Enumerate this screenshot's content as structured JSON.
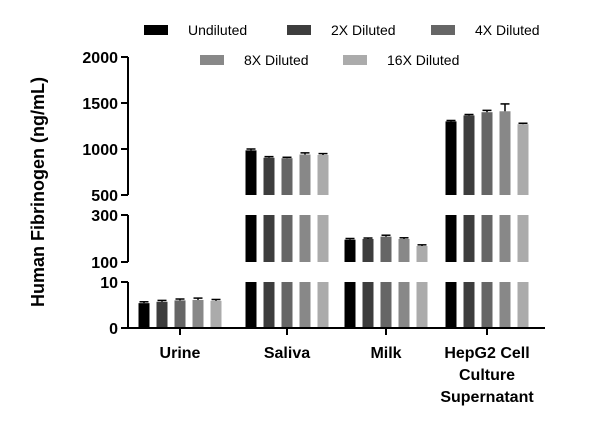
{
  "chart_data": {
    "type": "bar",
    "title": "",
    "xlabel": "",
    "ylabel": "Human Fibrinogen (ng/mL)",
    "categories": [
      "Urine",
      "Saliva",
      "Milk",
      "HepG2 Cell Culture Supernatant"
    ],
    "category_lines": [
      [
        "Urine"
      ],
      [
        "Saliva"
      ],
      [
        "Milk"
      ],
      [
        "HepG2 Cell",
        "Culture",
        "Supernatant"
      ]
    ],
    "series": [
      {
        "name": "Undiluted",
        "color": "#000000",
        "values": [
          5.4,
          985,
          195,
          1300
        ],
        "errors": [
          0.3,
          15,
          5,
          10
        ]
      },
      {
        "name": "2X Diluted",
        "color": "#3d3d3d",
        "values": [
          5.7,
          905,
          198,
          1365
        ],
        "errors": [
          0.3,
          12,
          4,
          10
        ]
      },
      {
        "name": "4X Diluted",
        "color": "#666666",
        "values": [
          6.0,
          900,
          208,
          1400
        ],
        "errors": [
          0.3,
          10,
          6,
          20
        ]
      },
      {
        "name": "8X Diluted",
        "color": "#888888",
        "values": [
          6.1,
          940,
          198,
          1410
        ],
        "errors": [
          0.4,
          18,
          5,
          80
        ]
      },
      {
        "name": "16X Diluted",
        "color": "#ababab",
        "values": [
          5.9,
          935,
          168,
          1270
        ],
        "errors": [
          0.3,
          15,
          5,
          10
        ]
      }
    ],
    "y_axis": {
      "segments": [
        {
          "range": [
            0,
            10
          ],
          "ticks": [
            0,
            10
          ]
        },
        {
          "range": [
            100,
            300
          ],
          "ticks": [
            100,
            300
          ]
        },
        {
          "range": [
            500,
            2000
          ],
          "ticks": [
            500,
            1000,
            1500,
            2000
          ]
        }
      ]
    },
    "legend": {
      "position": "top"
    },
    "grid": false
  }
}
